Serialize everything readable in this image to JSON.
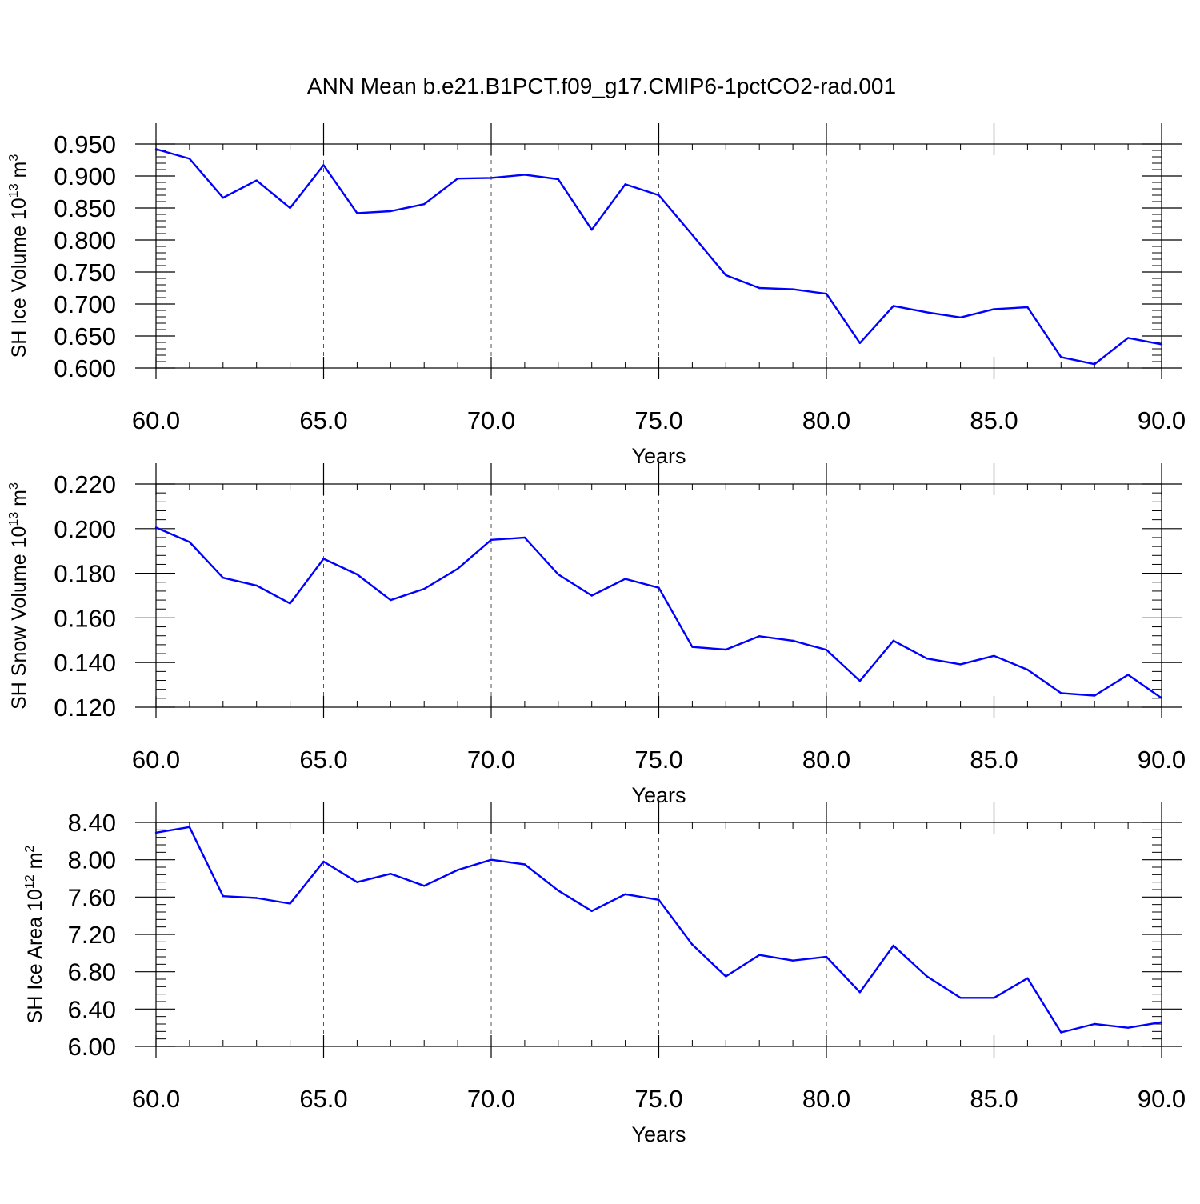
{
  "title": "ANN Mean b.e21.B1PCT.f09_g17.CMIP6-1pctCO2-rad.001",
  "colors": {
    "line": "#0000ff",
    "axis": "#000000",
    "grid": "#555555",
    "background": "#ffffff"
  },
  "chart_data": [
    {
      "type": "line",
      "title": "ANN Mean b.e21.B1PCT.f09_g17.CMIP6-1pctCO2-rad.001",
      "xlabel": "Years",
      "ylabel": {
        "main": "SH Ice Volume 10",
        "sup1": "13",
        "mid": " m",
        "sup2": "3"
      },
      "xlim": [
        60,
        90
      ],
      "ylim": [
        0.6,
        0.95
      ],
      "xticks": [
        60,
        65,
        70,
        75,
        80,
        85,
        90
      ],
      "xtick_labels": [
        "60.0",
        "65.0",
        "70.0",
        "75.0",
        "80.0",
        "85.0",
        "90.0"
      ],
      "yticks": [
        0.6,
        0.65,
        0.7,
        0.75,
        0.8,
        0.85,
        0.9,
        0.95
      ],
      "ytick_labels": [
        "0.600",
        "0.650",
        "0.700",
        "0.750",
        "0.800",
        "0.850",
        "0.900",
        "0.950"
      ],
      "yminor_step": 0.01,
      "x": [
        60,
        61,
        62,
        63,
        64,
        65,
        66,
        67,
        68,
        69,
        70,
        71,
        72,
        73,
        74,
        75,
        76,
        77,
        78,
        79,
        80,
        81,
        82,
        83,
        84,
        85,
        86,
        87,
        88,
        89,
        90
      ],
      "y": [
        0.942,
        0.927,
        0.866,
        0.893,
        0.85,
        0.917,
        0.842,
        0.845,
        0.856,
        0.896,
        0.897,
        0.902,
        0.895,
        0.816,
        0.887,
        0.87,
        0.808,
        0.745,
        0.725,
        0.723,
        0.716,
        0.639,
        0.697,
        0.687,
        0.679,
        0.692,
        0.695,
        0.617,
        0.606,
        0.647,
        0.637
      ],
      "grid": "vertical dashed at major x ticks"
    },
    {
      "type": "line",
      "xlabel": "Years",
      "ylabel": {
        "main": "SH Snow Volume 10",
        "sup1": "13",
        "mid": " m",
        "sup2": "3"
      },
      "xlim": [
        60,
        90
      ],
      "ylim": [
        0.12,
        0.22
      ],
      "xticks": [
        60,
        65,
        70,
        75,
        80,
        85,
        90
      ],
      "xtick_labels": [
        "60.0",
        "65.0",
        "70.0",
        "75.0",
        "80.0",
        "85.0",
        "90.0"
      ],
      "yticks": [
        0.12,
        0.14,
        0.16,
        0.18,
        0.2,
        0.22
      ],
      "ytick_labels": [
        "0.120",
        "0.140",
        "0.160",
        "0.180",
        "0.200",
        "0.220"
      ],
      "yminor_step": 0.004,
      "x": [
        60,
        61,
        62,
        63,
        64,
        65,
        66,
        67,
        68,
        69,
        70,
        71,
        72,
        73,
        74,
        75,
        76,
        77,
        78,
        79,
        80,
        81,
        82,
        83,
        84,
        85,
        86,
        87,
        88,
        89,
        90
      ],
      "y": [
        0.2005,
        0.194,
        0.178,
        0.1745,
        0.1665,
        0.1865,
        0.1795,
        0.168,
        0.173,
        0.182,
        0.195,
        0.196,
        0.1795,
        0.17,
        0.1775,
        0.1735,
        0.147,
        0.1458,
        0.1518,
        0.1498,
        0.1457,
        0.1318,
        0.1498,
        0.1418,
        0.1392,
        0.143,
        0.1368,
        0.1263,
        0.1252,
        0.1345,
        0.1241
      ],
      "grid": "vertical dashed at major x ticks"
    },
    {
      "type": "line",
      "xlabel": "Years",
      "ylabel": {
        "main": "SH Ice Area 10",
        "sup1": "12",
        "mid": " m",
        "sup2": "2"
      },
      "xlim": [
        60,
        90
      ],
      "ylim": [
        6.0,
        8.4
      ],
      "xticks": [
        60,
        65,
        70,
        75,
        80,
        85,
        90
      ],
      "xtick_labels": [
        "60.0",
        "65.0",
        "70.0",
        "75.0",
        "80.0",
        "85.0",
        "90.0"
      ],
      "yticks": [
        6.0,
        6.4,
        6.8,
        7.2,
        7.6,
        8.0,
        8.4
      ],
      "ytick_labels": [
        "6.00",
        "6.40",
        "6.80",
        "7.20",
        "7.60",
        "8.00",
        "8.40"
      ],
      "yminor_step": 0.08,
      "x": [
        60,
        61,
        62,
        63,
        64,
        65,
        66,
        67,
        68,
        69,
        70,
        71,
        72,
        73,
        74,
        75,
        76,
        77,
        78,
        79,
        80,
        81,
        82,
        83,
        84,
        85,
        86,
        87,
        88,
        89,
        90
      ],
      "y": [
        8.29,
        8.35,
        7.61,
        7.59,
        7.53,
        7.98,
        7.76,
        7.85,
        7.72,
        7.89,
        8.0,
        7.95,
        7.67,
        7.45,
        7.63,
        7.57,
        7.09,
        6.75,
        6.98,
        6.92,
        6.96,
        6.58,
        7.08,
        6.75,
        6.52,
        6.52,
        6.73,
        6.15,
        6.24,
        6.2,
        6.26
      ],
      "grid": "vertical dashed at major x ticks"
    }
  ]
}
